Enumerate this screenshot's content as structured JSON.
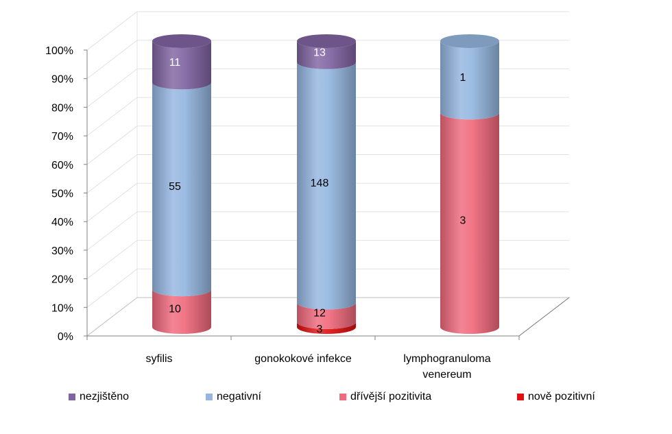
{
  "chart_data": {
    "type": "bar",
    "stacked": "percent",
    "style": "3d-cylinder",
    "categories": [
      [
        "syfilis"
      ],
      [
        "gonokokové infekce"
      ],
      [
        "lymphogranuloma",
        "venereum"
      ]
    ],
    "series": [
      {
        "name": "nově pozitivní",
        "color": "#e01010",
        "values": [
          0,
          3,
          0
        ]
      },
      {
        "name": "dřívější pozitivita",
        "color": "#f0697c",
        "values": [
          10,
          12,
          3
        ]
      },
      {
        "name": "negativní",
        "color": "#94b6e0",
        "values": [
          55,
          148,
          1
        ]
      },
      {
        "name": "nezjištěno",
        "color": "#8064a2",
        "values": [
          11,
          13,
          0
        ]
      }
    ],
    "data_labels": [
      [
        "",
        "10",
        "55",
        "11"
      ],
      [
        "3",
        "12",
        "148",
        "13"
      ],
      [
        "",
        "3",
        "1",
        ""
      ]
    ],
    "y_ticks": [
      "0%",
      "10%",
      "20%",
      "30%",
      "40%",
      "50%",
      "60%",
      "70%",
      "80%",
      "90%",
      "100%"
    ],
    "ylim": [
      0,
      100
    ],
    "grid": true,
    "legend_position": "bottom",
    "legend_order": [
      "nezjištěno",
      "negativní",
      "dřívější pozitivita",
      "nově pozitivní"
    ]
  }
}
